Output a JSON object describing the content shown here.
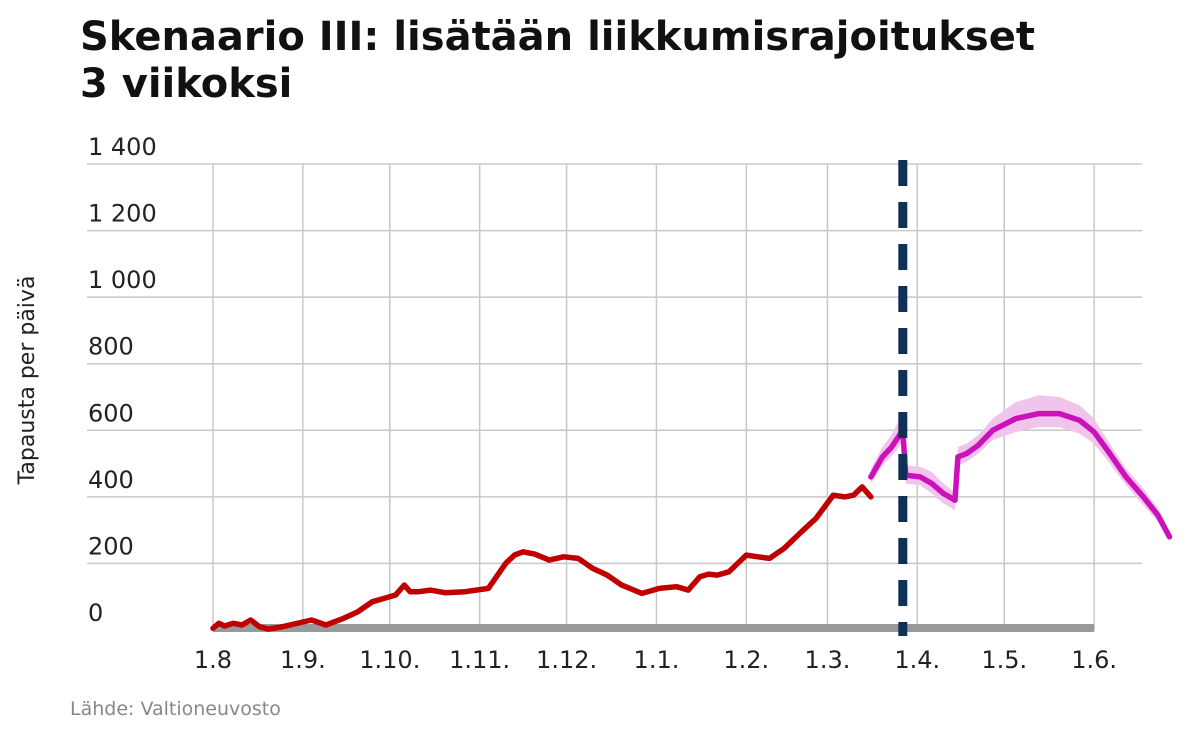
{
  "chart_data": {
    "type": "line",
    "title": "Skenaario III: lisätään liikkumisrajoitukset",
    "subtitle": "3 viikoksi",
    "ylabel": "Tapausta per päivä",
    "xlabel": "",
    "ylim": [
      0,
      1400
    ],
    "y_ticks": [
      0,
      200,
      400,
      600,
      800,
      1000,
      1200,
      1400
    ],
    "y_tick_labels": [
      "0",
      "200",
      "400",
      "600",
      "800",
      "1 000",
      "1 200",
      "1 400"
    ],
    "x_ticks": [
      "2020-08-01",
      "2020-09-01",
      "2020-10-01",
      "2020-11-01",
      "2020-12-01",
      "2021-01-01",
      "2021-02-01",
      "2021-03-01",
      "2021-04-01",
      "2021-05-01",
      "2021-06-01"
    ],
    "x_tick_labels": [
      "1.8",
      "1.9.",
      "1.10.",
      "1.11.",
      "1.12.",
      "1.1.",
      "1.2.",
      "1.3.",
      "1.4.",
      "1.5.",
      "1.6."
    ],
    "xlim": [
      "2020-08-01",
      "2021-06-30"
    ],
    "grid": true,
    "colors": {
      "observed": "#c00000",
      "forecast": "#cc11bb",
      "forecast_band": "#f1c4ec",
      "restriction_line": "#0f3057",
      "baseline": "#999999",
      "grid": "#c8c8c8"
    },
    "restriction_start": "2021-03-27",
    "series": [
      {
        "role": "observed",
        "x": [
          "2020-08-01",
          "2020-08-03",
          "2020-08-05",
          "2020-08-08",
          "2020-08-11",
          "2020-08-14",
          "2020-08-17",
          "2020-08-20",
          "2020-08-24",
          "2020-08-29",
          "2020-09-04",
          "2020-09-09",
          "2020-09-12",
          "2020-09-15",
          "2020-09-20",
          "2020-09-25",
          "2020-09-29",
          "2020-10-03",
          "2020-10-06",
          "2020-10-08",
          "2020-10-11",
          "2020-10-15",
          "2020-10-20",
          "2020-10-27",
          "2020-11-04",
          "2020-11-10",
          "2020-11-13",
          "2020-11-16",
          "2020-11-20",
          "2020-11-25",
          "2020-11-30",
          "2020-12-05",
          "2020-12-10",
          "2020-12-15",
          "2020-12-20",
          "2020-12-27",
          "2021-01-02",
          "2021-01-08",
          "2021-01-12",
          "2021-01-16",
          "2021-01-19",
          "2021-01-22",
          "2021-01-26",
          "2021-02-01",
          "2021-02-05",
          "2021-02-09",
          "2021-02-14",
          "2021-02-20",
          "2021-02-25",
          "2021-02-28",
          "2021-03-03",
          "2021-03-07",
          "2021-03-10",
          "2021-03-13",
          "2021-03-16"
        ],
        "values": [
          5,
          20,
          12,
          20,
          15,
          30,
          10,
          3,
          8,
          18,
          30,
          15,
          25,
          35,
          55,
          85,
          95,
          105,
          135,
          115,
          115,
          120,
          112,
          115,
          125,
          200,
          225,
          235,
          228,
          210,
          220,
          215,
          185,
          165,
          135,
          110,
          125,
          130,
          120,
          160,
          168,
          165,
          175,
          225,
          220,
          215,
          245,
          295,
          335,
          370,
          405,
          400,
          405,
          430,
          400
        ]
      },
      {
        "role": "forecast",
        "x": [
          "2021-03-16",
          "2021-03-20",
          "2021-03-23",
          "2021-03-27",
          "2021-03-28",
          "2021-04-02",
          "2021-04-06",
          "2021-04-10",
          "2021-04-13",
          "2021-04-14",
          "2021-04-15",
          "2021-04-18",
          "2021-04-22",
          "2021-04-27",
          "2021-05-05",
          "2021-05-13",
          "2021-05-20",
          "2021-05-27",
          "2021-06-01",
          "2021-06-06",
          "2021-06-12",
          "2021-06-18",
          "2021-06-23",
          "2021-06-27"
        ],
        "values": [
          460,
          520,
          548,
          600,
          465,
          460,
          440,
          410,
          395,
          390,
          520,
          530,
          555,
          600,
          635,
          650,
          650,
          630,
          595,
          535,
          460,
          400,
          345,
          280
        ],
        "band_low": [
          440,
          495,
          520,
          565,
          440,
          435,
          410,
          380,
          365,
          360,
          495,
          505,
          530,
          570,
          595,
          610,
          610,
          590,
          560,
          505,
          435,
          375,
          325,
          265
        ],
        "band_high": [
          485,
          550,
          585,
          650,
          495,
          490,
          475,
          440,
          420,
          415,
          550,
          560,
          585,
          635,
          685,
          705,
          700,
          675,
          635,
          565,
          485,
          425,
          365,
          295
        ]
      }
    ]
  },
  "source": "Lähde: Valtioneuvosto"
}
